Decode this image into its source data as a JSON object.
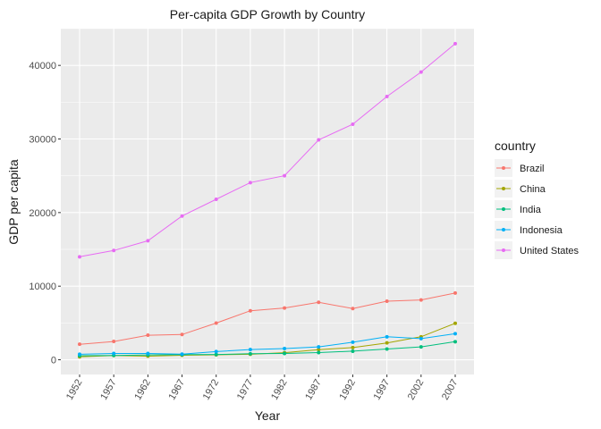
{
  "chart_data": {
    "type": "line",
    "title": "Per-capita GDP Growth by Country",
    "xlabel": "Year",
    "ylabel": "GDP per capita",
    "x": [
      1952,
      1957,
      1962,
      1967,
      1972,
      1977,
      1982,
      1987,
      1992,
      1997,
      2002,
      2007
    ],
    "xlim": [
      1949.25,
      2009.75
    ],
    "ylim": [
      -2000,
      45000
    ],
    "yticks": [
      0,
      10000,
      20000,
      30000,
      40000
    ],
    "ytick_labels": [
      "0",
      "10000",
      "20000",
      "30000",
      "40000"
    ],
    "xtick_labels": [
      "1952",
      "1957",
      "1962",
      "1967",
      "1972",
      "1977",
      "1982",
      "1987",
      "1992",
      "1997",
      "2002",
      "2007"
    ],
    "grid": true,
    "legend": {
      "title": "country",
      "position": "right"
    },
    "series": [
      {
        "name": "Brazil",
        "color": "#F8766D",
        "values": [
          2109,
          2487,
          3337,
          3430,
          4986,
          6660,
          7031,
          7807,
          6950,
          7958,
          8131,
          9066
        ]
      },
      {
        "name": "China",
        "color": "#A3A500",
        "values": [
          400,
          575,
          487,
          613,
          677,
          741,
          962,
          1379,
          1656,
          2289,
          3119,
          4959
        ]
      },
      {
        "name": "India",
        "color": "#00BF7D",
        "values": [
          547,
          590,
          658,
          701,
          724,
          813,
          856,
          977,
          1164,
          1459,
          1747,
          2452
        ]
      },
      {
        "name": "Indonesia",
        "color": "#00B0F6",
        "values": [
          750,
          859,
          849,
          763,
          1111,
          1383,
          1517,
          1748,
          2383,
          3119,
          2874,
          3541
        ]
      },
      {
        "name": "United States",
        "color": "#E76BF3",
        "values": [
          13990,
          14847,
          16173,
          19531,
          21806,
          24073,
          25010,
          29884,
          32004,
          35767,
          39097,
          42952
        ]
      }
    ]
  }
}
